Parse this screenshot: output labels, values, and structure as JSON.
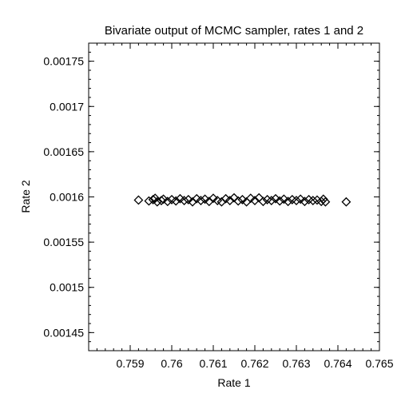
{
  "chart_data": {
    "type": "scatter",
    "title": "Bivariate output of MCMC sampler, rates 1 and 2",
    "xlabel": "Rate 1",
    "ylabel": "Rate 2",
    "xlim": [
      0.758,
      0.765
    ],
    "ylim": [
      0.00143,
      0.00177
    ],
    "x_ticks": [
      0.759,
      0.76,
      0.761,
      0.762,
      0.763,
      0.764,
      0.765
    ],
    "x_tick_labels": [
      "0.759",
      "0.76",
      "0.761",
      "0.762",
      "0.763",
      "0.764",
      "0.765"
    ],
    "y_ticks": [
      0.00145,
      0.0015,
      0.00155,
      0.0016,
      0.00165,
      0.0017,
      0.00175
    ],
    "y_tick_labels": [
      "0.00145",
      "0.0015",
      "0.00155",
      "0.0016",
      "0.00165",
      "0.0017",
      "0.00175"
    ],
    "grid": false,
    "marker": "diamond-open",
    "points": [
      [
        0.7592,
        0.0015965
      ],
      [
        0.7642,
        0.0015945
      ],
      [
        0.75945,
        0.0015955
      ],
      [
        0.75955,
        0.001597
      ],
      [
        0.7596,
        0.0015985
      ],
      [
        0.75965,
        0.0015945
      ],
      [
        0.75975,
        0.001596
      ],
      [
        0.7598,
        0.0015975
      ],
      [
        0.7599,
        0.001595
      ],
      [
        0.76,
        0.001597
      ],
      [
        0.7601,
        0.0015955
      ],
      [
        0.7602,
        0.001598
      ],
      [
        0.7603,
        0.001596
      ],
      [
        0.7604,
        0.001597
      ],
      [
        0.7605,
        0.0015945
      ],
      [
        0.7606,
        0.001598
      ],
      [
        0.7607,
        0.001596
      ],
      [
        0.7608,
        0.0015975
      ],
      [
        0.7609,
        0.001595
      ],
      [
        0.761,
        0.0015985
      ],
      [
        0.7611,
        0.001596
      ],
      [
        0.7612,
        0.0015945
      ],
      [
        0.7613,
        0.001598
      ],
      [
        0.7614,
        0.001596
      ],
      [
        0.7615,
        0.001599
      ],
      [
        0.7616,
        0.0015955
      ],
      [
        0.7617,
        0.001597
      ],
      [
        0.7618,
        0.0015945
      ],
      [
        0.7619,
        0.0015985
      ],
      [
        0.762,
        0.001596
      ],
      [
        0.7621,
        0.001599
      ],
      [
        0.7622,
        0.001595
      ],
      [
        0.7623,
        0.001597
      ],
      [
        0.7624,
        0.001596
      ],
      [
        0.7625,
        0.001598
      ],
      [
        0.7626,
        0.0015955
      ],
      [
        0.7627,
        0.0015975
      ],
      [
        0.7628,
        0.001595
      ],
      [
        0.7629,
        0.001597
      ],
      [
        0.763,
        0.001596
      ],
      [
        0.7631,
        0.0015975
      ],
      [
        0.7632,
        0.001595
      ],
      [
        0.7633,
        0.001597
      ],
      [
        0.7634,
        0.001596
      ],
      [
        0.7635,
        0.0015965
      ],
      [
        0.7636,
        0.001595
      ],
      [
        0.76365,
        0.0015975
      ],
      [
        0.7637,
        0.0015945
      ]
    ]
  }
}
